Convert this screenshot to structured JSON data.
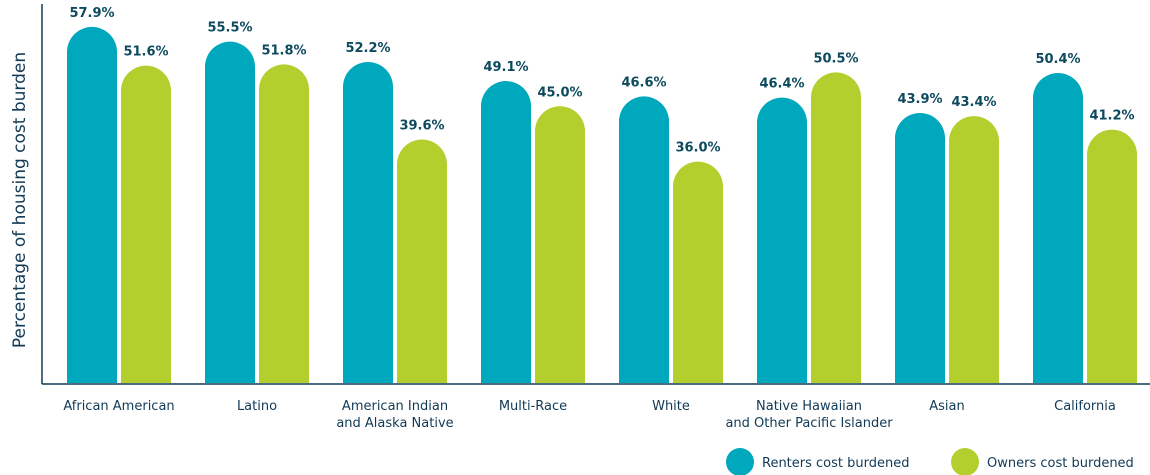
{
  "chart_data": {
    "type": "bar",
    "y_label": "Percentage of housing cost burden",
    "categories": [
      "African American",
      "Latino",
      "American Indian\nand Alaska Native",
      "Multi-Race",
      "White",
      "Native Hawaiian\nand Other Pacific Islander",
      "Asian",
      "California"
    ],
    "series": [
      {
        "name": "Renters cost burdened",
        "color": "#00a8bd",
        "values": [
          57.9,
          55.5,
          52.2,
          49.1,
          46.6,
          46.4,
          43.9,
          50.4
        ],
        "value_labels": [
          "57.9%",
          "55.5%",
          "52.2%",
          "49.1%",
          "46.6%",
          "46.4%",
          "43.9%",
          "50.4%"
        ]
      },
      {
        "name": "Owners cost burdened",
        "color": "#b3cf2e",
        "values": [
          51.6,
          51.8,
          39.6,
          45.0,
          36.0,
          50.5,
          43.4,
          41.2
        ],
        "value_labels": [
          "51.6%",
          "51.8%",
          "39.6%",
          "45.0%",
          "36.0%",
          "50.5%",
          "43.4%",
          "41.2%"
        ]
      }
    ],
    "ylim": [
      0,
      60
    ],
    "legend": "bottom-right"
  }
}
